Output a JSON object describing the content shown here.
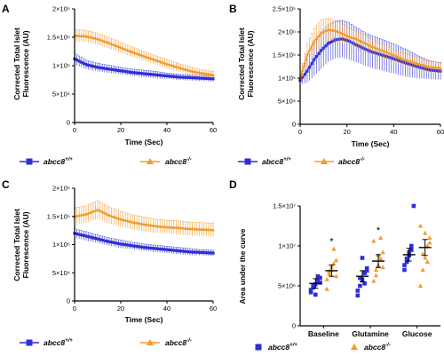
{
  "colors": {
    "wt": "#2f2fd6",
    "ko": "#f39a2c",
    "axis": "#000000"
  },
  "legend": {
    "wt_base": "abcc8",
    "wt_sup": "+/+",
    "ko_base": "abcc8",
    "ko_sup": "-/-"
  },
  "chart_data": [
    {
      "panel": "A",
      "type": "line",
      "xlabel": "Time (Sec)",
      "ylabel": [
        "Corrected Total Islet",
        "Fluorescence (AU)"
      ],
      "xlim": [
        0,
        60
      ],
      "ylim": [
        0,
        200000
      ],
      "xticks": [
        0,
        20,
        40,
        60
      ],
      "xtick_labels": [
        "0",
        "20",
        "40",
        "60"
      ],
      "yticks": [
        0,
        50000,
        100000,
        150000,
        200000
      ],
      "ytick_labels": [
        "0",
        "5×10⁴",
        "1×10⁵",
        "1.5×10⁵",
        "2×10⁵"
      ],
      "series": [
        {
          "name": "abcc8+/+",
          "color_key": "wt",
          "marker": "square",
          "x": [
            0,
            5,
            10,
            15,
            20,
            25,
            30,
            35,
            40,
            45,
            50,
            55,
            60
          ],
          "y": [
            112000,
            102000,
            97000,
            94000,
            91000,
            88000,
            86000,
            84000,
            82000,
            80000,
            79000,
            78000,
            77000
          ],
          "err": [
            10000,
            8000,
            7000,
            7000,
            6000,
            6000,
            6000,
            6000,
            5000,
            5000,
            5000,
            5000,
            5000
          ]
        },
        {
          "name": "abcc8-/-",
          "color_key": "ko",
          "marker": "triangle",
          "x": [
            0,
            5,
            10,
            15,
            20,
            25,
            30,
            35,
            40,
            45,
            50,
            55,
            60
          ],
          "y": [
            153000,
            152000,
            147000,
            140000,
            132000,
            124000,
            117000,
            110000,
            103000,
            97000,
            91000,
            87000,
            84000
          ],
          "err": [
            11000,
            10000,
            10000,
            10000,
            9000,
            9000,
            8000,
            8000,
            8000,
            7000,
            7000,
            6000,
            6000
          ]
        }
      ]
    },
    {
      "panel": "B",
      "type": "line",
      "xlabel": "Time (Sec)",
      "ylabel": [
        "Corrected Total Islet",
        "Fluorescence (AU)"
      ],
      "xlim": [
        0,
        60
      ],
      "ylim": [
        0,
        250000
      ],
      "xticks": [
        0,
        20,
        40,
        60
      ],
      "xtick_labels": [
        "0",
        "20",
        "40",
        "60"
      ],
      "yticks": [
        0,
        50000,
        100000,
        150000,
        200000,
        250000
      ],
      "ytick_labels": [
        "0",
        "5×10⁴",
        "1×10⁵",
        "1.5×10⁵",
        "2×10⁵",
        "2.5×10⁵"
      ],
      "series": [
        {
          "name": "abcc8+/+",
          "color_key": "wt",
          "marker": "square",
          "x": [
            0,
            3,
            6,
            9,
            12,
            15,
            18,
            21,
            24,
            27,
            30,
            35,
            40,
            45,
            50,
            55,
            60
          ],
          "y": [
            95000,
            115000,
            140000,
            160000,
            175000,
            183000,
            185000,
            180000,
            172000,
            165000,
            158000,
            150000,
            142000,
            133000,
            125000,
            118000,
            115000
          ],
          "err": [
            8000,
            25000,
            35000,
            40000,
            40000,
            40000,
            40000,
            40000,
            38000,
            36000,
            35000,
            34000,
            32000,
            30000,
            25000,
            20000,
            18000
          ]
        },
        {
          "name": "abcc8-/-",
          "color_key": "ko",
          "marker": "triangle",
          "x": [
            0,
            3,
            6,
            9,
            12,
            15,
            18,
            21,
            24,
            27,
            30,
            35,
            40,
            45,
            50,
            55,
            60
          ],
          "y": [
            100000,
            150000,
            180000,
            198000,
            205000,
            203000,
            197000,
            190000,
            185000,
            178000,
            170000,
            160000,
            150000,
            140000,
            132000,
            125000,
            122000
          ],
          "err": [
            10000,
            25000,
            28000,
            28000,
            25000,
            22000,
            20000,
            18000,
            17000,
            16000,
            15000,
            14000,
            13000,
            13000,
            12000,
            12000,
            12000
          ]
        }
      ]
    },
    {
      "panel": "C",
      "type": "line",
      "xlabel": "Time (Sec)",
      "ylabel": [
        "Corrected Total Islet",
        "Fluorescence (AU)"
      ],
      "xlim": [
        0,
        60
      ],
      "ylim": [
        0,
        200000
      ],
      "xticks": [
        0,
        20,
        40,
        60
      ],
      "xtick_labels": [
        "0",
        "20",
        "40",
        "60"
      ],
      "yticks": [
        0,
        50000,
        100000,
        150000,
        200000
      ],
      "ytick_labels": [
        "0",
        "5×10⁴",
        "1×10⁵",
        "1.5×10⁵",
        "2×10⁵"
      ],
      "series": [
        {
          "name": "abcc8+/+",
          "color_key": "wt",
          "marker": "square",
          "x": [
            0,
            5,
            10,
            15,
            20,
            25,
            30,
            35,
            40,
            45,
            50,
            55,
            60
          ],
          "y": [
            120000,
            115000,
            110000,
            105000,
            101000,
            98000,
            95000,
            93000,
            91000,
            89000,
            87000,
            86000,
            85000
          ],
          "err": [
            8000,
            8000,
            7000,
            7000,
            7000,
            6000,
            6000,
            6000,
            6000,
            6000,
            6000,
            5000,
            5000
          ]
        },
        {
          "name": "abcc8-/-",
          "color_key": "ko",
          "marker": "triangle",
          "x": [
            0,
            5,
            10,
            15,
            20,
            25,
            30,
            35,
            40,
            45,
            50,
            55,
            60
          ],
          "y": [
            150000,
            154000,
            162000,
            152000,
            145000,
            140000,
            136000,
            133000,
            131000,
            130000,
            128000,
            127000,
            126000
          ],
          "err": [
            15000,
            15000,
            16000,
            15000,
            14000,
            13000,
            13000,
            12000,
            12000,
            12000,
            12000,
            12000,
            12000
          ]
        }
      ]
    },
    {
      "panel": "D",
      "type": "scatter",
      "xlabel": "",
      "ylabel": [
        "Area under the curve"
      ],
      "categories": [
        "Baseline",
        "Glutamine",
        "Glucose"
      ],
      "ylim": [
        0,
        15000000
      ],
      "yticks": [
        0,
        5000000,
        10000000,
        15000000
      ],
      "ytick_labels": [
        "0",
        "5×10⁶",
        "1×10⁷",
        "1.5×10⁷"
      ],
      "significance": [
        "*",
        "*",
        ""
      ],
      "series": [
        {
          "name": "abcc8+/+",
          "color_key": "wt",
          "marker": "square",
          "points": [
            [
              4200000,
              4800000,
              5200000,
              5600000,
              6000000,
              4500000,
              5000000,
              3900000,
              6200000,
              5400000
            ],
            [
              3800000,
              5000000,
              5800000,
              6600000,
              7200000,
              4400000,
              6000000,
              8500000,
              5300000,
              6900000
            ],
            [
              7000000,
              8000000,
              8800000,
              9500000,
              15000000,
              7600000,
              8400000,
              9200000,
              10000000
            ]
          ],
          "mean": [
            5300000,
            6200000,
            8900000
          ],
          "sem": [
            600000,
            700000,
            800000
          ]
        },
        {
          "name": "abcc8-/-",
          "color_key": "ko",
          "marker": "triangle",
          "points": [
            [
              5800000,
              6500000,
              7000000,
              7800000,
              8200000,
              4600000,
              6800000,
              7400000,
              9600000,
              6200000
            ],
            [
              5600000,
              7000000,
              7600000,
              8400000,
              9200000,
              10600000,
              6300000,
              8800000,
              11000000,
              7300000
            ],
            [
              5000000,
              7000000,
              8500000,
              10000000,
              11000000,
              12500000,
              9000000,
              11600000,
              8000000,
              10400000
            ]
          ],
          "mean": [
            6900000,
            8100000,
            9800000
          ],
          "sem": [
            700000,
            800000,
            1000000
          ]
        }
      ]
    }
  ]
}
